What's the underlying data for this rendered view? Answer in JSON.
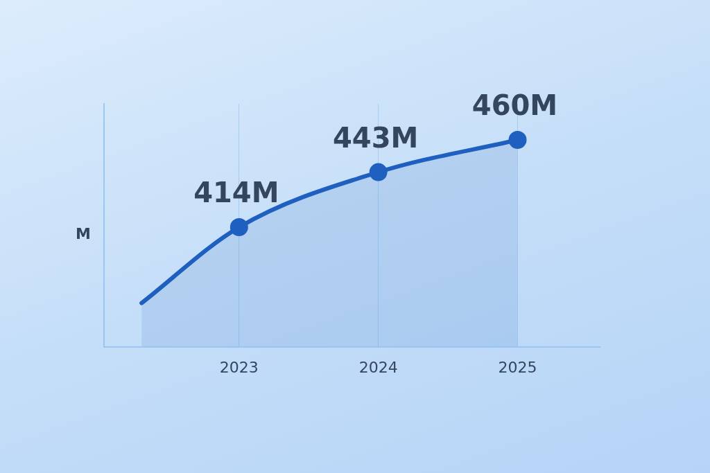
{
  "chart_data": {
    "type": "area",
    "ylabel": "M",
    "x": [
      2022.3,
      2023,
      2024,
      2025
    ],
    "xlim": [
      2022.03,
      2025.59
    ],
    "xticks": [
      2023,
      2024,
      2025
    ],
    "ylim": [
      351,
      479
    ],
    "tick_labels": "x",
    "values": [
      374,
      414,
      443,
      460
    ],
    "value_labels": [
      null,
      "414M",
      "443M",
      "460M"
    ],
    "color": "#1f5fbf",
    "marker": "circle",
    "grid": "x",
    "legend": false
  }
}
